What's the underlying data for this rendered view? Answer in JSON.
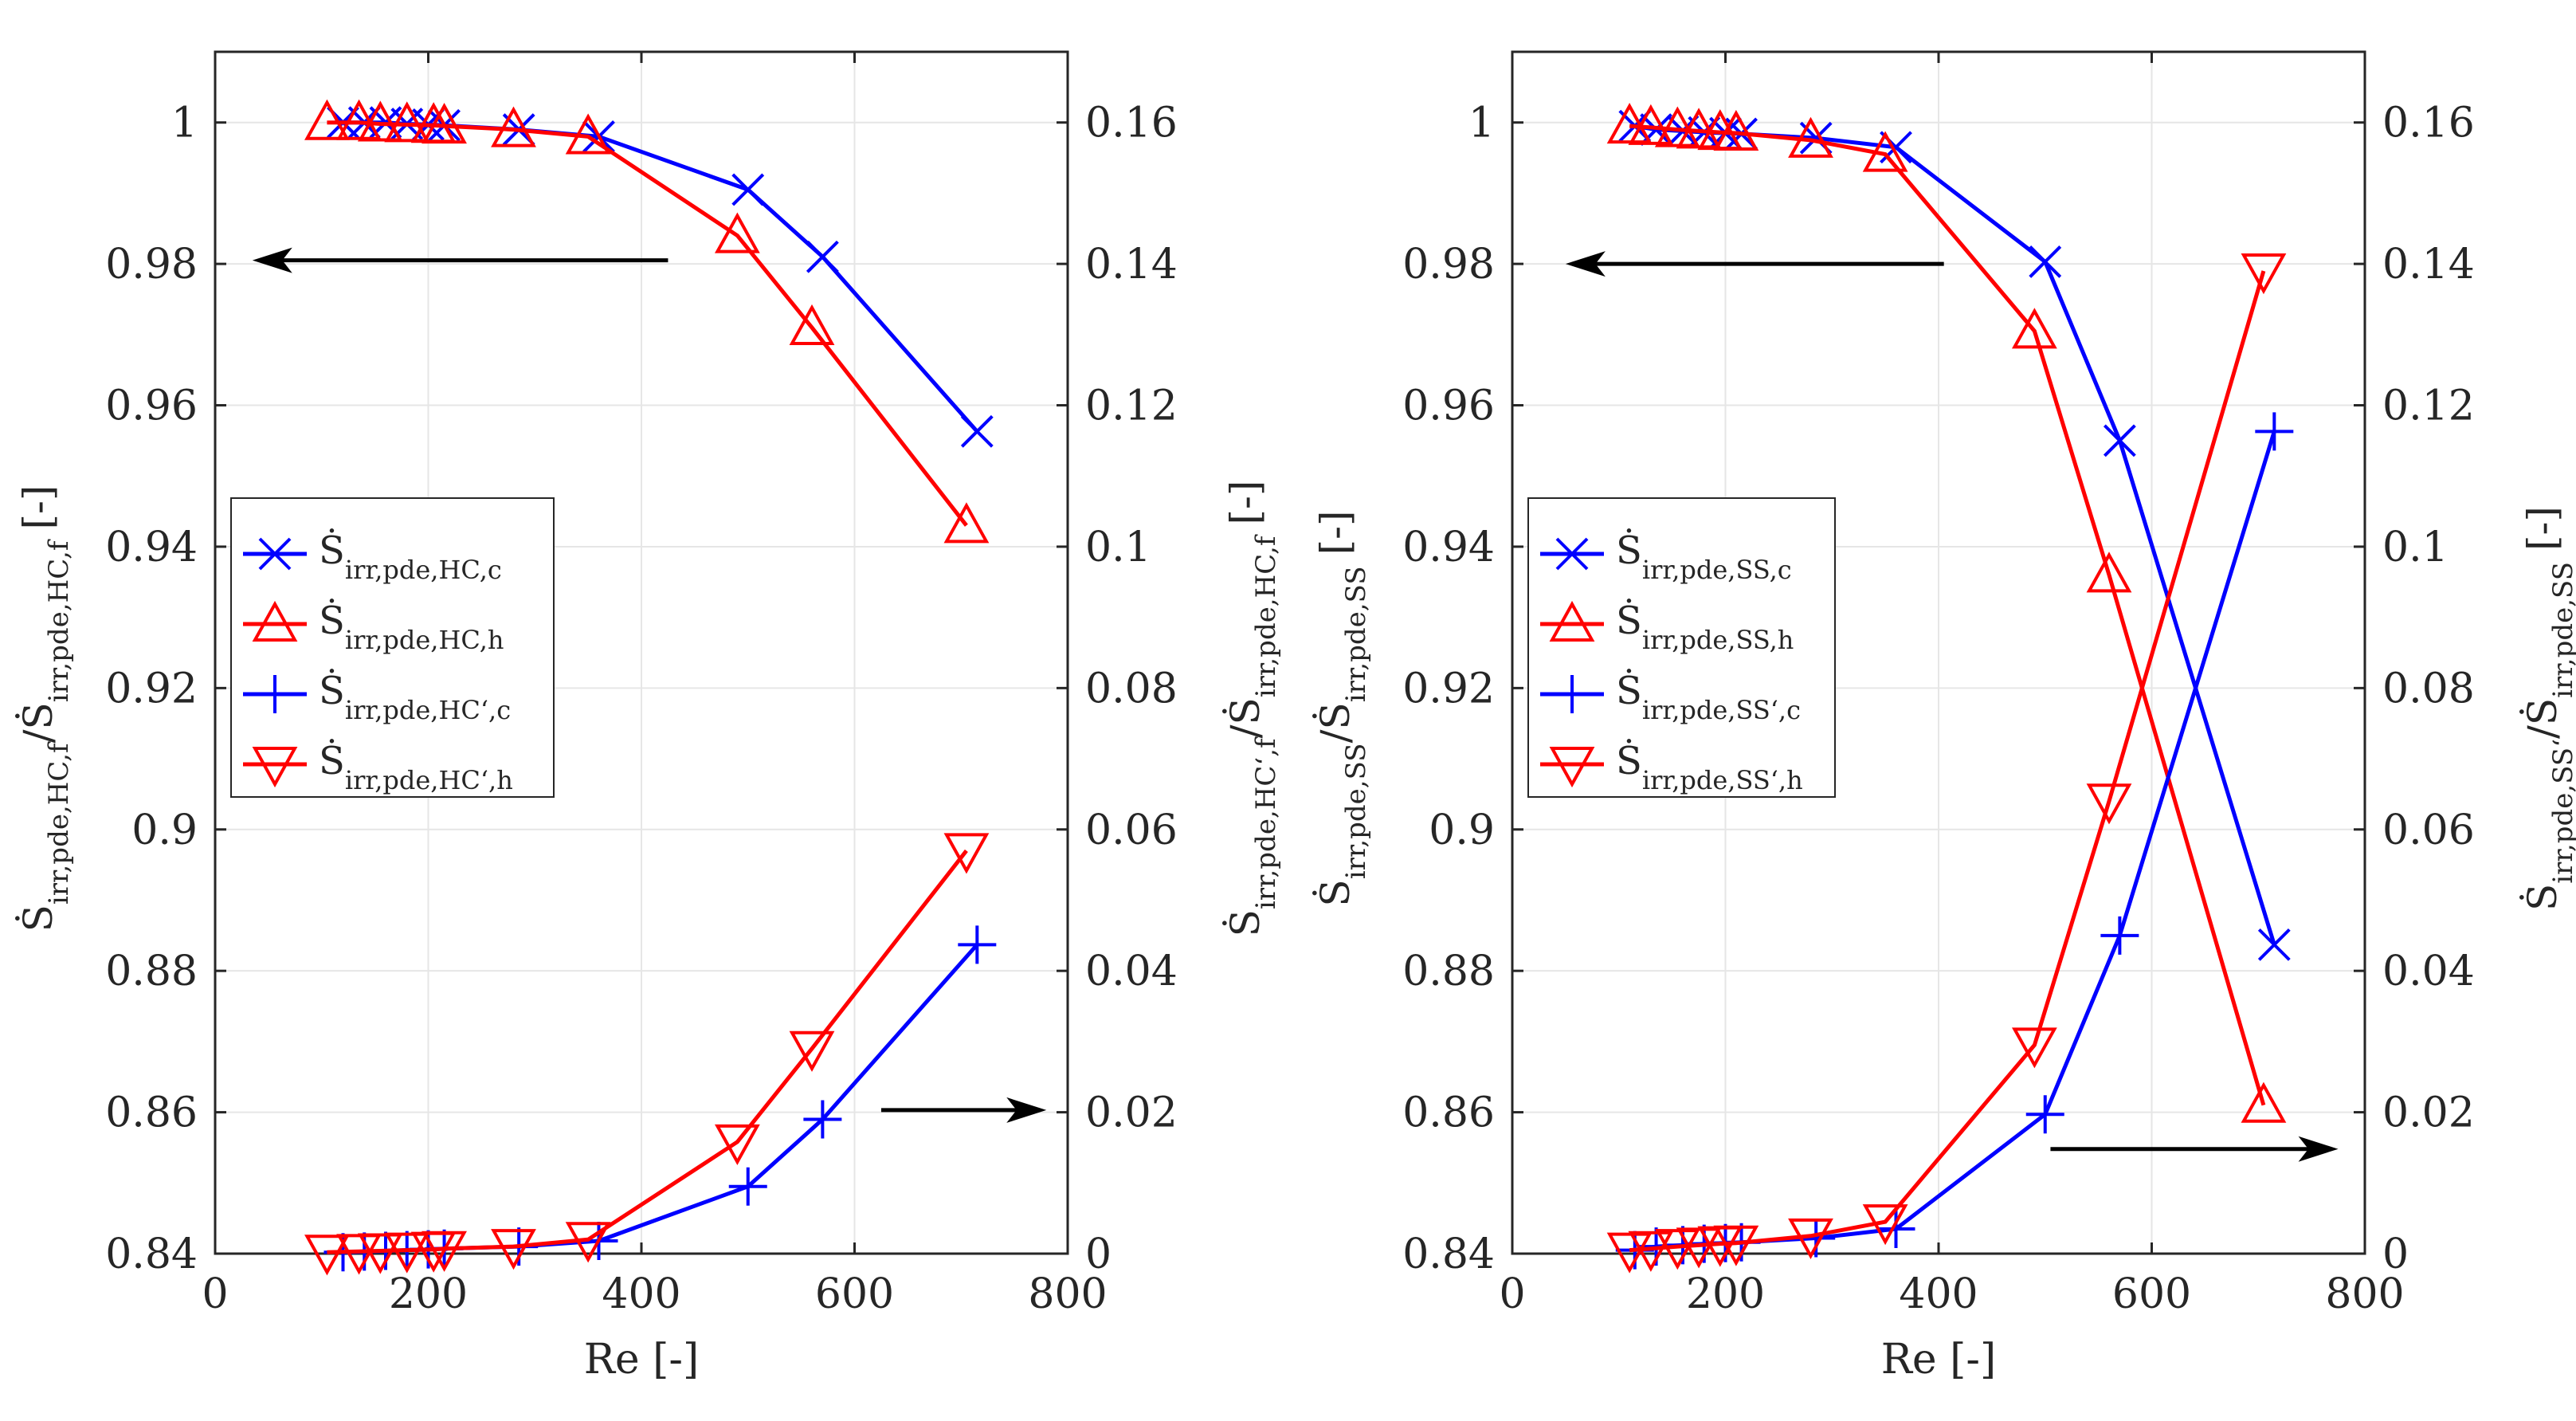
{
  "colors": {
    "cold": "#0000ff",
    "hot": "#ff0000",
    "axis": "#262626",
    "grid": "#e6e6e6",
    "arrow": "#000000"
  },
  "chart_data": [
    {
      "type": "line",
      "xlabel": "Re [-]",
      "ylabel_left": {
        "main": "Ṡ",
        "sub": "irr,pde,HC,f",
        "mid": "/Ṡ",
        "sub2": "irr,pde,HC,f",
        "unit": "[-]"
      },
      "ylabel_right": {
        "main": "Ṡ",
        "sub": "irr,pde,HC‘,f",
        "mid": "/Ṡ",
        "sub2": "irr,pde,HC,f",
        "unit": "[-]"
      },
      "xlim": [
        0,
        800
      ],
      "ylim_left": [
        0.84,
        1.01
      ],
      "ylim_right": [
        0,
        0.17
      ],
      "xticks": [
        "0",
        "200",
        "400",
        "600",
        "800"
      ],
      "yticks_left": [
        "0.84",
        "0.86",
        "0.88",
        "0.9",
        "0.92",
        "0.94",
        "0.96",
        "0.98",
        "1"
      ],
      "yticks_right": [
        "0",
        "0.02",
        "0.04",
        "0.06",
        "0.08",
        "0.1",
        "0.12",
        "0.14",
        "0.16"
      ],
      "grid": true,
      "legend_position": "middle-left",
      "series": [
        {
          "name": "Ṡirr,pde,HC,c",
          "label_main": "Ṡ",
          "label_sub": "irr,pde,HC,c",
          "axis": "left",
          "color": "#0000ff",
          "marker": "x",
          "x": [
            120,
            140,
            160,
            180,
            200,
            215,
            285,
            360,
            500,
            570,
            715
          ],
          "y": [
            1.0,
            1.0,
            1.0,
            0.9998,
            0.9997,
            0.9996,
            0.999,
            0.998,
            0.9905,
            0.981,
            0.9563
          ]
        },
        {
          "name": "Ṡirr,pde,HC,h",
          "label_main": "Ṡ",
          "label_sub": "irr,pde,HC,h",
          "axis": "left",
          "color": "#ff0000",
          "marker": "triangle-up",
          "x": [
            105,
            135,
            155,
            180,
            205,
            215,
            280,
            350,
            490,
            560,
            705
          ],
          "y": [
            1.0,
            1.0,
            0.9998,
            0.9997,
            0.9996,
            0.9995,
            0.999,
            0.998,
            0.984,
            0.971,
            0.943
          ]
        },
        {
          "name": "Ṡirr,pde,HC‘,c",
          "label_main": "Ṡ",
          "label_sub": "irr,pde,HC‘,c",
          "axis": "right",
          "color": "#0000ff",
          "marker": "plus",
          "x": [
            120,
            140,
            160,
            180,
            200,
            215,
            285,
            360,
            500,
            570,
            715
          ],
          "y": [
            0.0002,
            0.0003,
            0.0004,
            0.0005,
            0.0006,
            0.0007,
            0.001,
            0.0018,
            0.0095,
            0.019,
            0.0437
          ]
        },
        {
          "name": "Ṡirr,pde,HC‘,h",
          "label_main": "Ṡ",
          "label_sub": "irr,pde,HC‘,h",
          "axis": "right",
          "color": "#ff0000",
          "marker": "triangle-down",
          "x": [
            105,
            135,
            155,
            180,
            205,
            215,
            280,
            350,
            490,
            560,
            705
          ],
          "y": [
            0.0002,
            0.0003,
            0.0004,
            0.0005,
            0.0006,
            0.0007,
            0.001,
            0.002,
            0.0158,
            0.029,
            0.057
          ]
        }
      ],
      "arrows": [
        {
          "direction": "left",
          "x_from": 425,
          "x_to": 35,
          "y": 0.9805,
          "axis": "left"
        },
        {
          "direction": "right",
          "x_from": 625,
          "x_to": 780,
          "y": 0.0203,
          "axis": "right"
        }
      ]
    },
    {
      "type": "line",
      "xlabel": "Re [-]",
      "ylabel_left": {
        "main": "Ṡ",
        "sub": "irr,pde,SS",
        "mid": "/Ṡ",
        "sub2": "irr,pde,SS",
        "unit": "[-]"
      },
      "ylabel_right": {
        "main": "Ṡ",
        "sub": "irr,pde,SS‘",
        "mid": "/Ṡ",
        "sub2": "irr,pde,SS",
        "unit": "[-]"
      },
      "xlim": [
        0,
        800
      ],
      "ylim_left": [
        0.84,
        1.01
      ],
      "ylim_right": [
        0,
        0.17
      ],
      "xticks": [
        "0",
        "200",
        "400",
        "600",
        "800"
      ],
      "yticks_left": [
        "0.84",
        "0.86",
        "0.88",
        "0.9",
        "0.92",
        "0.94",
        "0.96",
        "0.98",
        "1"
      ],
      "yticks_right": [
        "0",
        "0.02",
        "0.04",
        "0.06",
        "0.08",
        "0.1",
        "0.12",
        "0.14",
        "0.16"
      ],
      "grid": true,
      "legend_position": "middle-left",
      "series": [
        {
          "name": "Ṡirr,pde,SS,c",
          "label_main": "Ṡ",
          "label_sub": "irr,pde,SS,c",
          "axis": "left",
          "color": "#0000ff",
          "marker": "x",
          "x": [
            115,
            135,
            160,
            180,
            200,
            215,
            285,
            360,
            500,
            570,
            715
          ],
          "y": [
            0.9995,
            0.999,
            0.9988,
            0.9986,
            0.9985,
            0.9984,
            0.9978,
            0.9965,
            0.9803,
            0.955,
            0.8837
          ]
        },
        {
          "name": "Ṡirr,pde,SS,h",
          "label_main": "Ṡ",
          "label_sub": "irr,pde,SS,h",
          "axis": "left",
          "color": "#ff0000",
          "marker": "triangle-up",
          "x": [
            110,
            130,
            155,
            175,
            195,
            210,
            280,
            350,
            490,
            560,
            705
          ],
          "y": [
            0.9995,
            0.9993,
            0.999,
            0.9988,
            0.9986,
            0.9985,
            0.9975,
            0.9955,
            0.9705,
            0.936,
            0.861
          ]
        },
        {
          "name": "Ṡirr,pde,SS‘,c",
          "label_main": "Ṡ",
          "label_sub": "irr,pde,SS‘,c",
          "axis": "right",
          "color": "#0000ff",
          "marker": "plus",
          "x": [
            115,
            135,
            160,
            180,
            200,
            215,
            285,
            360,
            500,
            570,
            715
          ],
          "y": [
            0.0005,
            0.001,
            0.0012,
            0.0014,
            0.0015,
            0.0016,
            0.0022,
            0.0035,
            0.0197,
            0.045,
            0.1163
          ]
        },
        {
          "name": "Ṡirr,pde,SS‘,h",
          "label_main": "Ṡ",
          "label_sub": "irr,pde,SS‘,h",
          "axis": "right",
          "color": "#ff0000",
          "marker": "triangle-down",
          "x": [
            110,
            130,
            155,
            175,
            195,
            210,
            280,
            350,
            490,
            560,
            705
          ],
          "y": [
            0.0005,
            0.0007,
            0.001,
            0.0012,
            0.0014,
            0.0015,
            0.0025,
            0.0045,
            0.0295,
            0.064,
            0.139
          ]
        }
      ],
      "arrows": [
        {
          "direction": "left",
          "x_from": 405,
          "x_to": 50,
          "y": 0.98,
          "axis": "left"
        },
        {
          "direction": "right",
          "x_from": 505,
          "x_to": 775,
          "y": 0.0148,
          "axis": "right"
        }
      ]
    }
  ]
}
